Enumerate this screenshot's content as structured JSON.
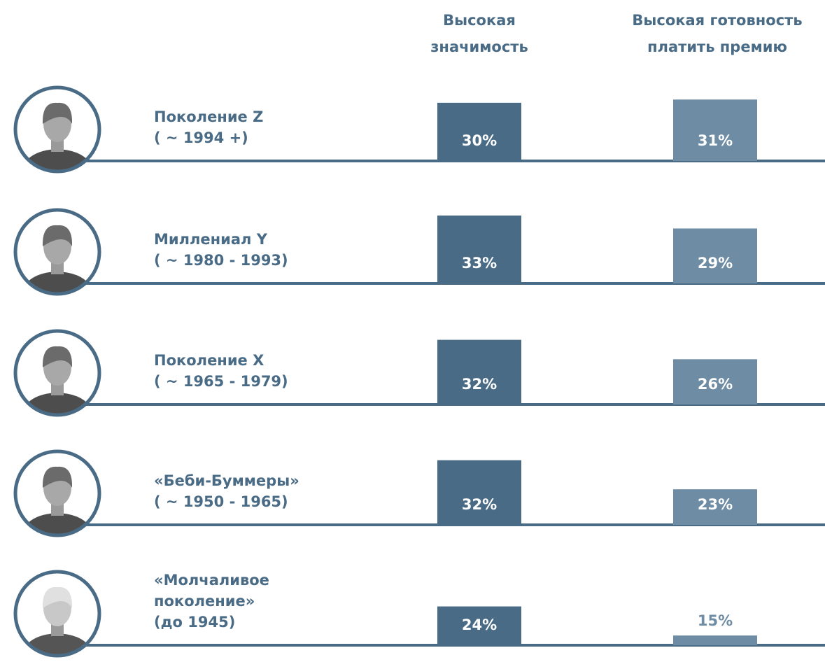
{
  "chart_data": {
    "type": "bar",
    "series": [
      {
        "name": "Высокая значимость",
        "color": "#4a6b85",
        "values": [
          30,
          33,
          32,
          32,
          24
        ],
        "value_labels": [
          "30%",
          "33%",
          "32%",
          "32%",
          "24%"
        ]
      },
      {
        "name": "Высокая готовность платить премию",
        "color": "#6e8ca3",
        "values": [
          31,
          29,
          26,
          23,
          15
        ],
        "value_labels": [
          "31%",
          "29%",
          "26%",
          "23%",
          "15%"
        ]
      }
    ],
    "categories": [
      [
        "Поколение Z",
        "( ~ 1994 +)"
      ],
      [
        "Миллениал Y",
        "( ~ 1980 - 1993)"
      ],
      [
        "Поколение X",
        "( ~ 1965 - 1979)"
      ],
      [
        "«Беби-Буммеры»",
        "( ~ 1950 - 1965)"
      ],
      [
        "«Молчаливое",
        "поколение»",
        "(до 1945)"
      ]
    ],
    "ylim": [
      12,
      33
    ]
  }
}
